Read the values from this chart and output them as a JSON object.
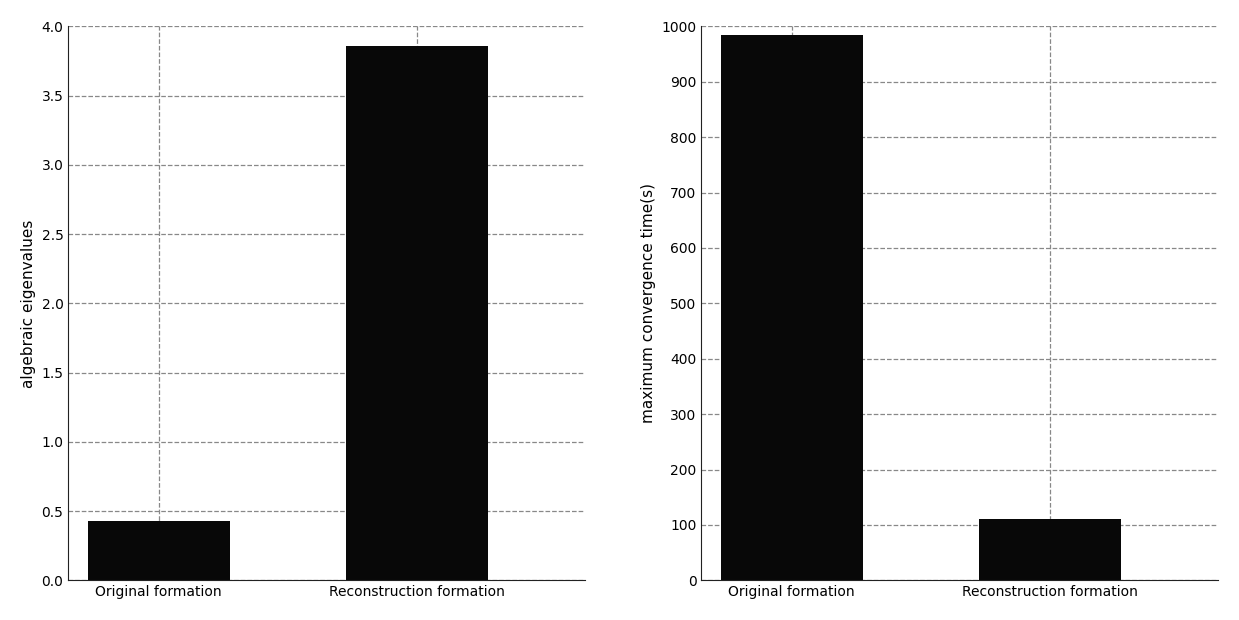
{
  "left_chart": {
    "categories": [
      "Original formation",
      "Reconstruction formation"
    ],
    "values": [
      0.43,
      3.86
    ],
    "ylabel": "algebraic eigenvalues",
    "ylim": [
      0,
      4
    ],
    "yticks": [
      0,
      0.5,
      1,
      1.5,
      2,
      2.5,
      3,
      3.5,
      4
    ],
    "bar_color": "#080808"
  },
  "right_chart": {
    "categories": [
      "Original formation",
      "Reconstruction formation"
    ],
    "values": [
      984,
      110
    ],
    "ylabel": "maximum convergence time(s)",
    "ylim": [
      0,
      1000
    ],
    "yticks": [
      0,
      100,
      200,
      300,
      400,
      500,
      600,
      700,
      800,
      900,
      1000
    ],
    "bar_color": "#080808"
  },
  "background_color": "#ffffff",
  "bar_width": 0.55,
  "grid_color": "#888888",
  "grid_linestyle": "--",
  "grid_linewidth": 0.9,
  "tick_labelsize": 10,
  "ylabel_fontsize": 11,
  "xtick_fontsize": 10,
  "x_positions": [
    0,
    1
  ],
  "xlim": [
    -0.35,
    1.65
  ]
}
